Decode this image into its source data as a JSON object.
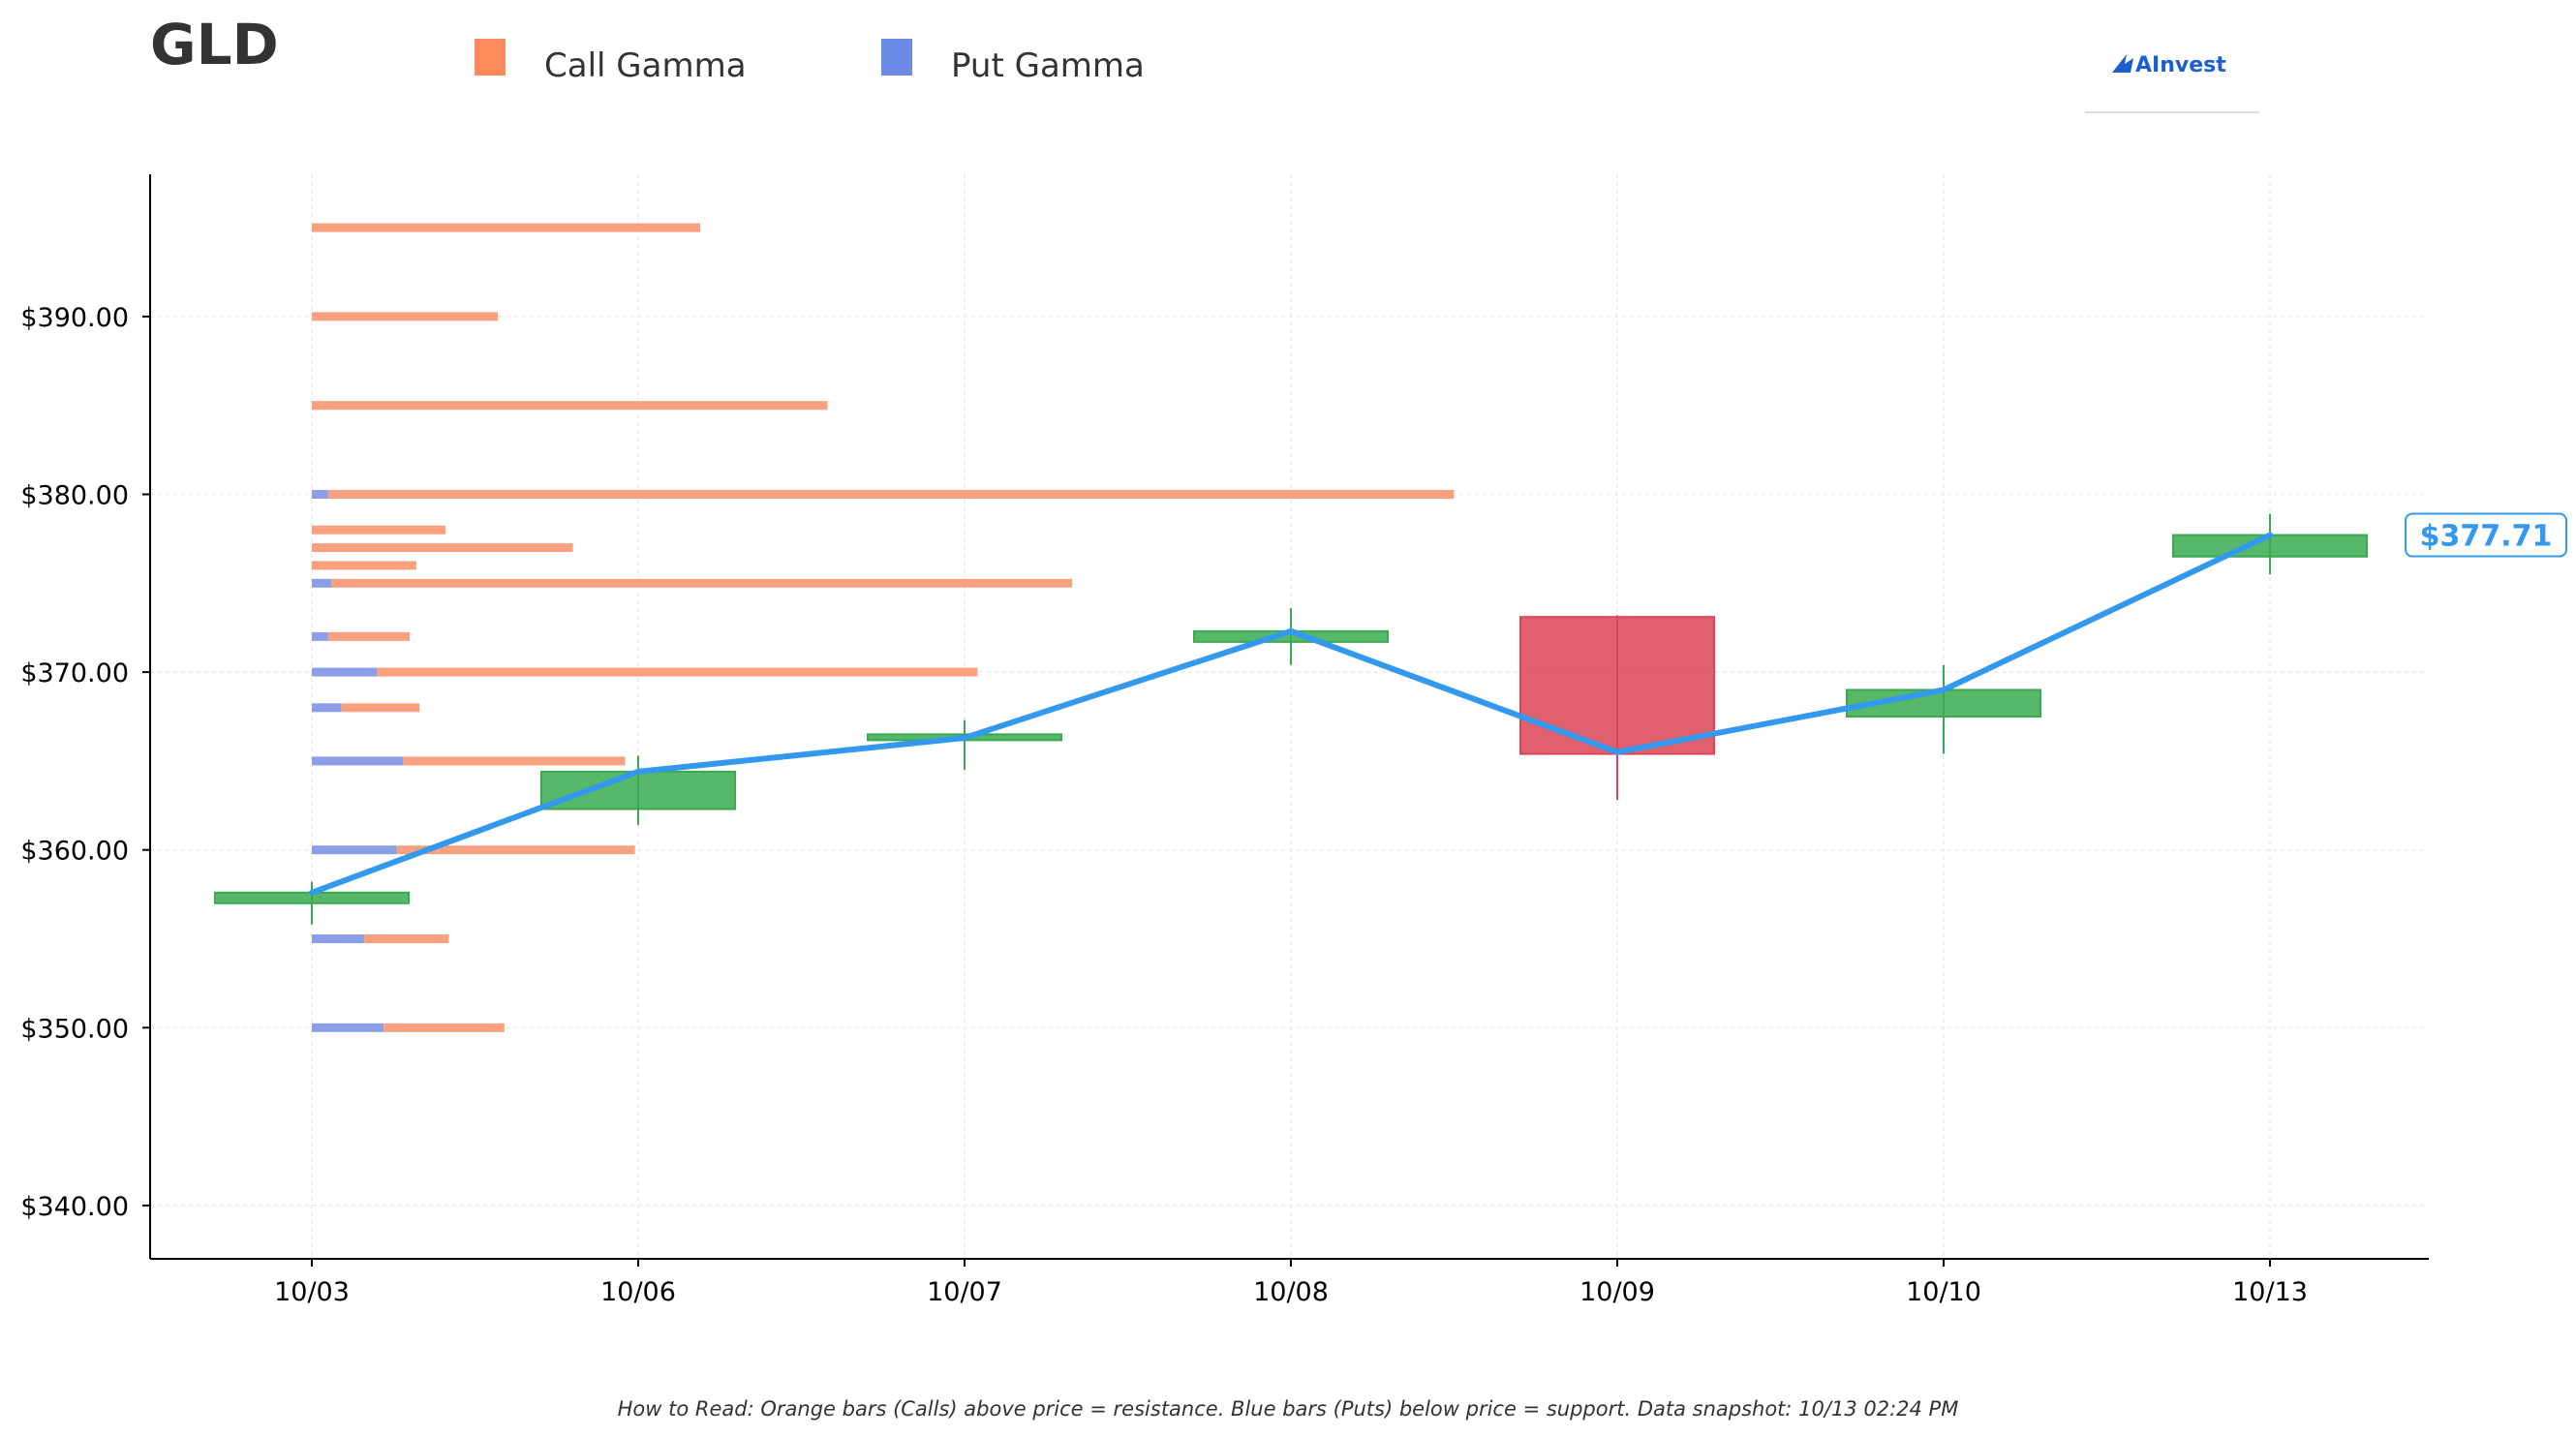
{
  "header": {
    "ticker": "GLD",
    "legend": [
      {
        "label": "Call Gamma",
        "color": "#ff8a5b"
      },
      {
        "label": "Put Gamma",
        "color": "#6b8be6"
      }
    ],
    "logo_text": "AInvest"
  },
  "footer": {
    "note": "How to Read: Orange bars (Calls) above price = resistance. Blue bars (Puts) below price = support. Data snapshot: 10/13 02:24 PM"
  },
  "chart_data": {
    "type": "candlestick",
    "ylim": [
      337,
      398
    ],
    "y_ticks": [
      340,
      350,
      360,
      370,
      380,
      390
    ],
    "y_tick_labels": [
      "$340.00",
      "$350.00",
      "$360.00",
      "$370.00",
      "$380.00",
      "$390.00"
    ],
    "categories": [
      "10/03",
      "10/06",
      "10/07",
      "10/08",
      "10/09",
      "10/10",
      "10/13"
    ],
    "grid": true,
    "colors": {
      "up": "#3aaa50",
      "down": "#dc4455",
      "close_line": "#3399ee",
      "call": "#f9a07f",
      "put": "#8b9ee8"
    },
    "candles": [
      {
        "date": "10/03",
        "open": 357.0,
        "close": 357.6,
        "high": 358.2,
        "low": 355.8
      },
      {
        "date": "10/06",
        "open": 362.3,
        "close": 364.4,
        "high": 365.3,
        "low": 361.4
      },
      {
        "date": "10/07",
        "open": 366.2,
        "close": 366.5,
        "high": 367.3,
        "low": 364.5
      },
      {
        "date": "10/08",
        "open": 371.7,
        "close": 372.3,
        "high": 373.6,
        "low": 370.4
      },
      {
        "date": "10/09",
        "open": 373.1,
        "close": 365.4,
        "high": 373.2,
        "low": 362.8
      },
      {
        "date": "10/10",
        "open": 367.5,
        "close": 369.0,
        "high": 370.4,
        "low": 365.4
      },
      {
        "date": "10/13",
        "open": 376.5,
        "close": 377.71,
        "high": 378.9,
        "low": 375.5
      }
    ],
    "close_line": {
      "values": [
        357.6,
        364.4,
        366.3,
        372.3,
        365.5,
        369.0,
        377.71
      ]
    },
    "last_price_label": "$377.71",
    "gamma_units_note": "bar lengths measured in date-slots from the 10/03 axis",
    "gamma": [
      {
        "strike": 395,
        "put": 0.0,
        "call": 1.19
      },
      {
        "strike": 390,
        "put": 0.0,
        "call": 0.57
      },
      {
        "strike": 385,
        "put": 0.0,
        "call": 1.58
      },
      {
        "strike": 380,
        "put": 0.05,
        "call": 3.45
      },
      {
        "strike": 378,
        "put": 0.0,
        "call": 0.41
      },
      {
        "strike": 377,
        "put": 0.0,
        "call": 0.8
      },
      {
        "strike": 376,
        "put": 0.0,
        "call": 0.32
      },
      {
        "strike": 375,
        "put": 0.06,
        "call": 2.27
      },
      {
        "strike": 372,
        "put": 0.05,
        "call": 0.25
      },
      {
        "strike": 370,
        "put": 0.2,
        "call": 1.84
      },
      {
        "strike": 368,
        "put": 0.09,
        "call": 0.24
      },
      {
        "strike": 365,
        "put": 0.28,
        "call": 0.68
      },
      {
        "strike": 360,
        "put": 0.26,
        "call": 0.73
      },
      {
        "strike": 355,
        "put": 0.16,
        "call": 0.26
      },
      {
        "strike": 350,
        "put": 0.22,
        "call": 0.37
      }
    ]
  }
}
